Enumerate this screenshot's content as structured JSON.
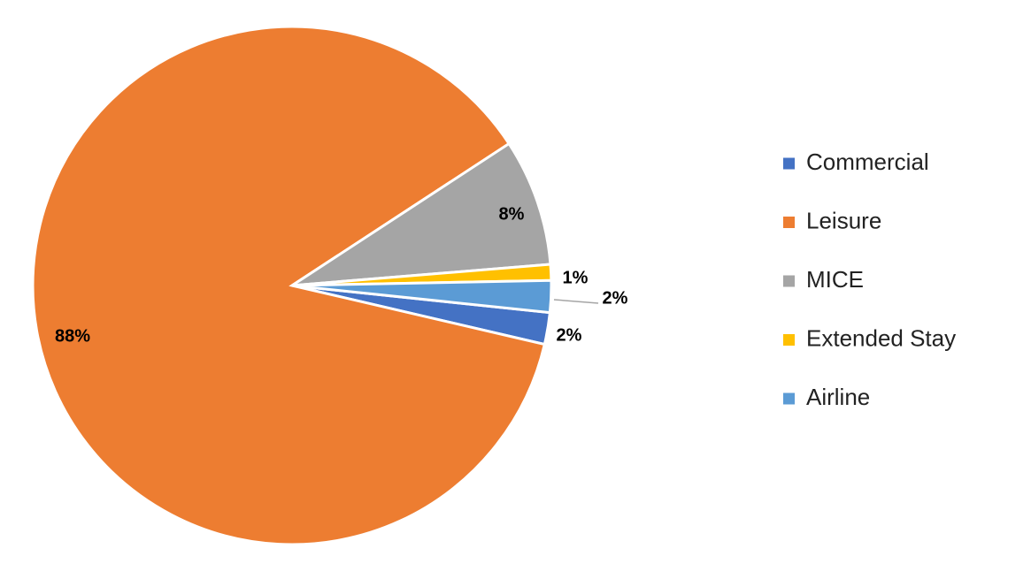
{
  "chart_data": {
    "type": "pie",
    "categories": [
      "Commercial",
      "Leisure",
      "MICE",
      "Extended Stay",
      "Airline"
    ],
    "values": [
      2,
      88,
      8,
      1,
      2
    ],
    "value_labels": [
      "2%",
      "88%",
      "8%",
      "1%",
      "2%"
    ],
    "colors": [
      "#4472c4",
      "#ed7d31",
      "#a5a5a5",
      "#ffc000",
      "#5b9bd5"
    ],
    "legend": "right"
  }
}
